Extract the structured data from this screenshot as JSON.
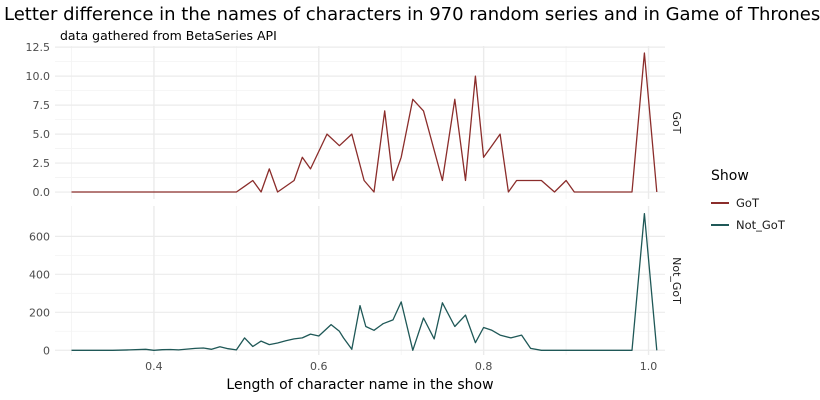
{
  "chart_data": {
    "type": "line",
    "title": "Letter difference in the names of characters in 970 random series and in Game of Thrones",
    "subtitle": "data gathered from BetaSeries API",
    "xlabel": "Length of character name in the show",
    "xlim": [
      0.28,
      1.02
    ],
    "x_ticks": [
      0.4,
      0.6,
      0.8,
      1.0
    ],
    "x_tick_labels": [
      "0.4",
      "0.6",
      "0.8",
      "1.0"
    ],
    "grid": true,
    "legend": {
      "title": "Show",
      "position": "right"
    },
    "colors": {
      "GoT": "#8b2d2b",
      "Not_GoT": "#1f5857",
      "grid": "#ebebeb"
    },
    "panels": [
      {
        "strip_label": "GoT",
        "series": "GoT",
        "ylim": [
          -0.6,
          12.6
        ],
        "y_ticks": [
          0,
          2.5,
          5,
          7.5,
          10,
          12.5
        ],
        "y_tick_labels": [
          "0.0",
          "2.5",
          "5.0",
          "7.5",
          "10.0",
          "12.5"
        ],
        "x": [
          0.3,
          0.35,
          0.4,
          0.45,
          0.49,
          0.5,
          0.51,
          0.52,
          0.53,
          0.54,
          0.55,
          0.57,
          0.58,
          0.59,
          0.61,
          0.625,
          0.64,
          0.655,
          0.667,
          0.68,
          0.69,
          0.7,
          0.714,
          0.727,
          0.75,
          0.765,
          0.778,
          0.79,
          0.8,
          0.81,
          0.82,
          0.83,
          0.84,
          0.857,
          0.87,
          0.886,
          0.9,
          0.91,
          0.92,
          0.94,
          0.96,
          0.98,
          0.995,
          1.01
        ],
        "y": [
          0,
          0,
          0,
          0,
          0,
          0,
          0.5,
          1,
          0,
          2,
          0,
          1,
          3,
          2,
          5,
          4,
          5,
          1,
          0,
          7,
          1,
          3,
          8,
          7,
          1,
          8,
          1,
          10,
          3,
          4,
          5,
          0,
          1,
          1,
          1,
          0,
          1,
          0,
          0,
          0,
          0,
          0,
          12,
          0
        ]
      },
      {
        "strip_label": "Not_GoT",
        "series": "Not_GoT",
        "ylim": [
          -25,
          760
        ],
        "y_ticks": [
          0,
          200,
          400,
          600
        ],
        "y_tick_labels": [
          "0",
          "200",
          "400",
          "600"
        ],
        "x": [
          0.3,
          0.33,
          0.35,
          0.37,
          0.39,
          0.4,
          0.41,
          0.42,
          0.43,
          0.45,
          0.46,
          0.47,
          0.48,
          0.49,
          0.5,
          0.51,
          0.52,
          0.53,
          0.54,
          0.55,
          0.56,
          0.57,
          0.58,
          0.59,
          0.6,
          0.615,
          0.625,
          0.63,
          0.64,
          0.65,
          0.657,
          0.667,
          0.678,
          0.69,
          0.7,
          0.714,
          0.727,
          0.74,
          0.75,
          0.765,
          0.778,
          0.79,
          0.8,
          0.81,
          0.82,
          0.833,
          0.846,
          0.857,
          0.87,
          0.88,
          0.89,
          0.9,
          0.91,
          0.92,
          0.94,
          0.96,
          0.98,
          0.995,
          1.01
        ],
        "y": [
          0,
          0,
          0,
          2,
          5,
          0,
          3,
          4,
          2,
          10,
          12,
          5,
          18,
          8,
          2,
          65,
          20,
          48,
          30,
          38,
          50,
          60,
          65,
          85,
          75,
          135,
          100,
          65,
          5,
          235,
          125,
          105,
          140,
          160,
          255,
          0,
          170,
          60,
          250,
          125,
          185,
          40,
          120,
          105,
          80,
          65,
          80,
          10,
          0,
          0,
          0,
          0,
          0,
          0,
          0,
          0,
          0,
          720,
          0
        ]
      }
    ]
  }
}
